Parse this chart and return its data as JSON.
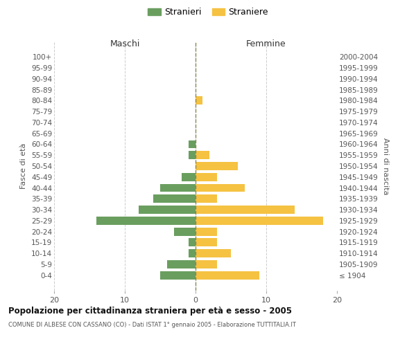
{
  "age_groups": [
    "100+",
    "95-99",
    "90-94",
    "85-89",
    "80-84",
    "75-79",
    "70-74",
    "65-69",
    "60-64",
    "55-59",
    "50-54",
    "45-49",
    "40-44",
    "35-39",
    "30-34",
    "25-29",
    "20-24",
    "15-19",
    "10-14",
    "5-9",
    "0-4"
  ],
  "birth_years": [
    "≤ 1904",
    "1905-1909",
    "1910-1914",
    "1915-1919",
    "1920-1924",
    "1925-1929",
    "1930-1934",
    "1935-1939",
    "1940-1944",
    "1945-1949",
    "1950-1954",
    "1955-1959",
    "1960-1964",
    "1965-1969",
    "1970-1974",
    "1975-1979",
    "1980-1984",
    "1985-1989",
    "1990-1994",
    "1995-1999",
    "2000-2004"
  ],
  "maschi": [
    0,
    0,
    0,
    0,
    0,
    0,
    0,
    0,
    1,
    1,
    0,
    2,
    5,
    6,
    8,
    14,
    3,
    1,
    1,
    4,
    5
  ],
  "femmine": [
    0,
    0,
    0,
    0,
    1,
    0,
    0,
    0,
    0,
    2,
    6,
    3,
    7,
    3,
    14,
    18,
    3,
    3,
    5,
    3,
    9
  ],
  "color_maschi": "#6a9e5f",
  "color_femmine": "#f5c242",
  "title": "Popolazione per cittadinanza straniera per età e sesso - 2005",
  "subtitle": "COMUNE DI ALBESE CON CASSANO (CO) - Dati ISTAT 1° gennaio 2005 - Elaborazione TUTTITALIA.IT",
  "xlabel_left": "Maschi",
  "xlabel_right": "Femmine",
  "ylabel_left": "Fasce di età",
  "ylabel_right": "Anni di nascita",
  "legend_maschi": "Stranieri",
  "legend_femmine": "Straniere",
  "xlim": 20,
  "background_color": "#ffffff",
  "grid_color": "#cccccc"
}
